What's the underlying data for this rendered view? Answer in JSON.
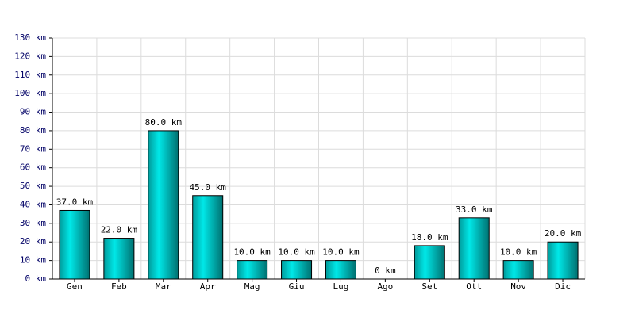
{
  "chart_data": {
    "type": "bar",
    "categories": [
      "Gen",
      "Feb",
      "Mar",
      "Apr",
      "Mag",
      "Giu",
      "Lug",
      "Ago",
      "Set",
      "Ott",
      "Nov",
      "Dic"
    ],
    "values": [
      37,
      22,
      80,
      45,
      10,
      10,
      10,
      0,
      18,
      33,
      10,
      20
    ],
    "value_labels": [
      "37.0 km",
      "22.0 km",
      "80.0 km",
      "45.0 km",
      "10.0 km",
      "10.0 km",
      "10.0 km",
      "0 km",
      "18.0 km",
      "33.0 km",
      "10.0 km",
      "20.0 km"
    ],
    "color": "#00cccc",
    "ylim": [
      0,
      130
    ],
    "yticks": [
      {
        "value": 0,
        "label": "0 km"
      },
      {
        "value": 10,
        "label": "10 km"
      },
      {
        "value": 20,
        "label": "20 km"
      },
      {
        "value": 30,
        "label": "30 km"
      },
      {
        "value": 40,
        "label": "40 km"
      },
      {
        "value": 50,
        "label": "50 km"
      },
      {
        "value": 60,
        "label": "60 km"
      },
      {
        "value": 70,
        "label": "70 km"
      },
      {
        "value": 80,
        "label": "80 km"
      },
      {
        "value": 90,
        "label": "90 km"
      },
      {
        "value": 100,
        "label": "100 km"
      },
      {
        "value": 110,
        "label": "110 km"
      },
      {
        "value": 120,
        "label": "120 km"
      },
      {
        "value": 130,
        "label": "130 km"
      }
    ],
    "grid": true
  }
}
